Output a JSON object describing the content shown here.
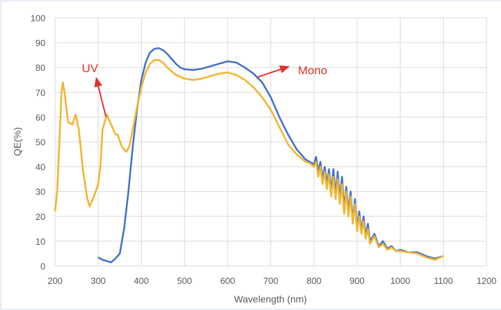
{
  "chart_data": {
    "type": "line",
    "title": "",
    "xlabel": "Wavelength (nm)",
    "ylabel": "QE(%)",
    "xlim": [
      200,
      1200
    ],
    "ylim": [
      0,
      100
    ],
    "xticks": [
      200,
      300,
      400,
      500,
      600,
      700,
      800,
      900,
      1000,
      1100,
      1200
    ],
    "yticks": [
      0,
      10,
      20,
      30,
      40,
      50,
      60,
      70,
      80,
      90,
      100
    ],
    "grid": true,
    "series": [
      {
        "name": "Mono",
        "color": "#4472c4",
        "x": [
          300,
          310,
          320,
          330,
          340,
          350,
          360,
          370,
          380,
          390,
          400,
          410,
          420,
          430,
          440,
          450,
          460,
          470,
          480,
          490,
          500,
          520,
          540,
          560,
          580,
          600,
          620,
          640,
          660,
          680,
          700,
          720,
          740,
          760,
          780,
          790,
          800,
          805,
          810,
          815,
          820,
          825,
          830,
          835,
          840,
          845,
          850,
          855,
          860,
          865,
          870,
          875,
          880,
          885,
          890,
          895,
          900,
          905,
          910,
          915,
          920,
          925,
          930,
          940,
          950,
          960,
          970,
          980,
          990,
          1000,
          1020,
          1040,
          1060,
          1080,
          1100
        ],
        "y": [
          3.5,
          2.5,
          2,
          1.5,
          3,
          5,
          15,
          30,
          48,
          63,
          75,
          82,
          86,
          87.5,
          87.8,
          87,
          85.5,
          83.5,
          81.5,
          80,
          79.3,
          79,
          79.5,
          80.5,
          81.5,
          82.5,
          82,
          80,
          77.5,
          74,
          68,
          60,
          53,
          47,
          43,
          42,
          41,
          44,
          38,
          42,
          35,
          40,
          33,
          39,
          30,
          39,
          29,
          38,
          27,
          36,
          23,
          32,
          22,
          30,
          18,
          27,
          15,
          22,
          14,
          20,
          12,
          17,
          10,
          13,
          8,
          10,
          7,
          8,
          6,
          6.5,
          5.5,
          5.5,
          4,
          3,
          4
        ]
      },
      {
        "name": "UV",
        "color": "#f2b52e",
        "x": [
          200,
          205,
          210,
          215,
          218,
          222,
          230,
          240,
          248,
          255,
          265,
          275,
          280,
          290,
          300,
          305,
          310,
          320,
          330,
          340,
          345,
          355,
          365,
          372,
          380,
          390,
          400,
          410,
          420,
          430,
          440,
          450,
          460,
          480,
          500,
          520,
          540,
          560,
          580,
          600,
          620,
          640,
          660,
          680,
          700,
          720,
          740,
          760,
          780,
          790,
          800,
          805,
          810,
          815,
          820,
          825,
          830,
          835,
          840,
          845,
          850,
          855,
          860,
          865,
          870,
          875,
          880,
          885,
          890,
          895,
          900,
          905,
          910,
          915,
          920,
          925,
          930,
          940,
          950,
          960,
          970,
          980,
          990,
          1000,
          1020,
          1040,
          1060,
          1080,
          1100
        ],
        "y": [
          22,
          30,
          50,
          70,
          74,
          70,
          58,
          57,
          61,
          55,
          38,
          27,
          24,
          28,
          33,
          40,
          55,
          61,
          57,
          53,
          53,
          48,
          46,
          48,
          55,
          64,
          72,
          78,
          81.5,
          83,
          83,
          82,
          80,
          77,
          75.5,
          75,
          75.5,
          76.5,
          77.5,
          78,
          77,
          75,
          72,
          68,
          63,
          56,
          49,
          45,
          42,
          41.5,
          40,
          42,
          36,
          40,
          33,
          38,
          31,
          37,
          28,
          36,
          27,
          35,
          25,
          33,
          21,
          30,
          20,
          28,
          17,
          25,
          14,
          20,
          13,
          18,
          11,
          15,
          9,
          12,
          7.5,
          9,
          6.5,
          7.5,
          6,
          6,
          5.5,
          5,
          3.5,
          2.5,
          4
        ]
      }
    ],
    "annotations": [
      {
        "text": "UV",
        "color": "#e0322a",
        "arrow_to_x": 320,
        "arrow_to_y": 61
      },
      {
        "text": "Mono",
        "color": "#e0322a",
        "arrow_from_x": 665,
        "arrow_from_y": 75.5
      }
    ]
  }
}
